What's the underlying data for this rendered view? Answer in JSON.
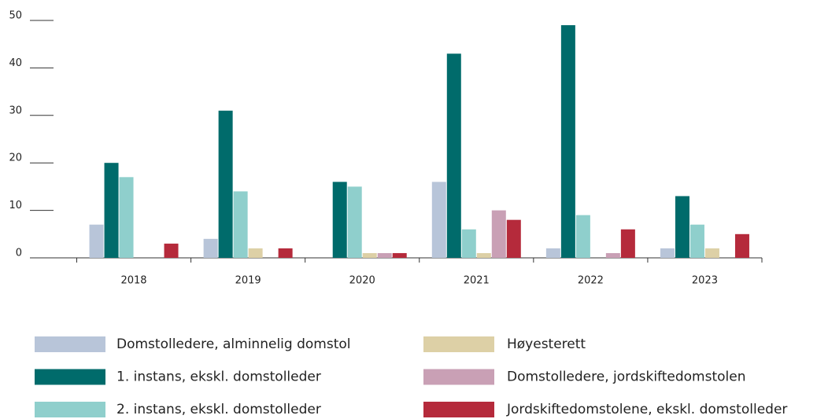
{
  "chart_data": {
    "type": "bar",
    "categories": [
      "2018",
      "2019",
      "2020",
      "2021",
      "2022",
      "2023"
    ],
    "series": [
      {
        "name": "Domstolledere, alminnelig domstol",
        "color": "#b8c5d9",
        "values": [
          7,
          4,
          0,
          16,
          2,
          2
        ]
      },
      {
        "name": "1. instans, ekskl. domstolleder",
        "color": "#006b6b",
        "values": [
          20,
          31,
          16,
          43,
          49,
          13
        ]
      },
      {
        "name": "2. instans, ekskl. domstolleder",
        "color": "#8fcfcc",
        "values": [
          17,
          14,
          15,
          6,
          9,
          7
        ]
      },
      {
        "name": "Høyesterett",
        "color": "#ddd0a6",
        "values": [
          0,
          2,
          1,
          1,
          0,
          2
        ]
      },
      {
        "name": "Domstolledere, jordskiftedomstolen",
        "color": "#c9a0b5",
        "values": [
          0,
          0,
          1,
          10,
          1,
          0
        ]
      },
      {
        "name": "Jordskiftedomstolene, ekskl. domstolleder",
        "color": "#b52a3b",
        "values": [
          3,
          2,
          1,
          8,
          6,
          5
        ]
      }
    ],
    "ylim": [
      0,
      50
    ],
    "yticks": [
      0,
      10,
      20,
      30,
      40,
      50
    ]
  }
}
